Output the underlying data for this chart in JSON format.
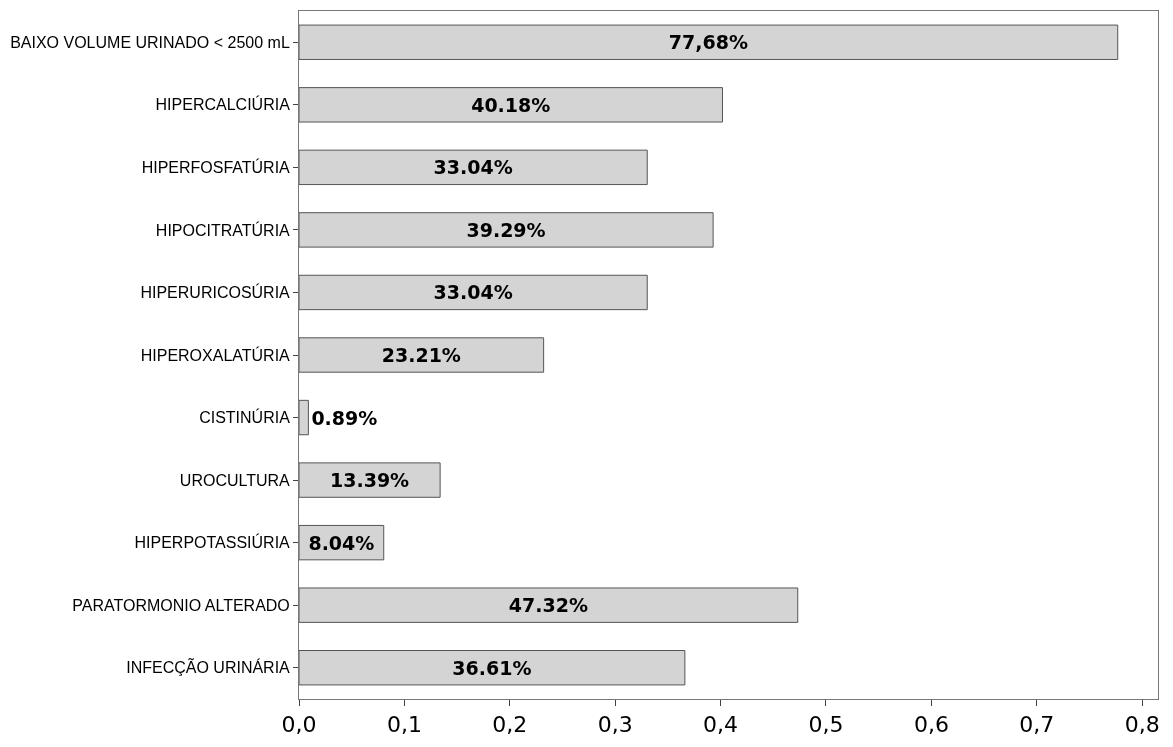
{
  "chart_data": {
    "type": "bar",
    "orientation": "horizontal",
    "categories": [
      "BAIXO VOLUME URINADO < 2500 mL",
      "HIPERCALCIÚRIA",
      "HIPERFOSFATÚRIA",
      "HIPOCITRATÚRIA",
      "HIPERURICOSÚRIA",
      "HIPEROXALATÚRIA",
      "CISTINÚRIA",
      "UROCULTURA",
      "HIPERPOTASSIÚRIA",
      "PARATORMONIO ALTERADO",
      "INFECÇÃO URINÁRIA"
    ],
    "values": [
      0.7768,
      0.4018,
      0.3304,
      0.3929,
      0.3304,
      0.2321,
      0.0089,
      0.1339,
      0.0804,
      0.4732,
      0.3661
    ],
    "value_labels": [
      "77,68%",
      "40.18%",
      "33.04%",
      "39.29%",
      "33.04%",
      "23.21%",
      "0.89%",
      "13.39%",
      "8.04%",
      "47.32%",
      "36.61%"
    ],
    "color": "#d4d4d4",
    "xlim": [
      0,
      0.815
    ],
    "xticks": [
      {
        "value": 0,
        "label": "0,0"
      },
      {
        "value": 0.1,
        "label": "0,1"
      },
      {
        "value": 0.2,
        "label": "0,2"
      },
      {
        "value": 0.3,
        "label": "0,3"
      },
      {
        "value": 0.4,
        "label": "0,4"
      },
      {
        "value": 0.5,
        "label": "0,5"
      },
      {
        "value": 0.6,
        "label": "0,6"
      },
      {
        "value": 0.7,
        "label": "0,7"
      },
      {
        "value": 0.8,
        "label": "0,8"
      }
    ],
    "legend": false
  }
}
